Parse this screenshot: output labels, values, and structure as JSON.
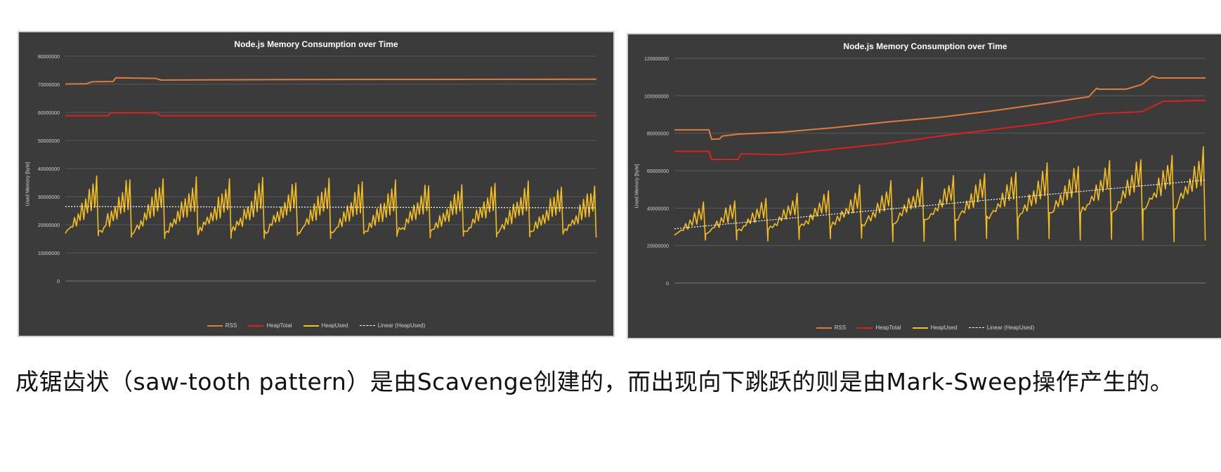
{
  "chart_data": [
    {
      "type": "line",
      "title": "Node.js Memory Consumption over Time",
      "ylabel": "Used Memory [byte]",
      "xlabel": "",
      "ylim": [
        0,
        80000000
      ],
      "yticks": [
        "80000000",
        "70000000",
        "60000000",
        "50000000",
        "40000000",
        "30000000",
        "20000000",
        "10000000",
        "0"
      ],
      "grid": true,
      "legend": "bottom",
      "series": [
        {
          "name": "RSS",
          "color": "#e07b39",
          "points": [
            [
              0,
              70100000
            ],
            [
              0.04,
              70200000
            ],
            [
              0.05,
              70900000
            ],
            [
              0.09,
              71000000
            ],
            [
              0.095,
              72300000
            ],
            [
              0.17,
              72100000
            ],
            [
              0.18,
              71500000
            ],
            [
              0.45,
              71700000
            ],
            [
              1.0,
              71800000
            ]
          ]
        },
        {
          "name": "HeapTotal",
          "color": "#e01f1f",
          "points": [
            [
              0,
              58800000
            ],
            [
              0.08,
              58800000
            ],
            [
              0.085,
              59800000
            ],
            [
              0.17,
              59800000
            ],
            [
              0.18,
              58800000
            ],
            [
              1.0,
              58800000
            ]
          ]
        },
        {
          "name": "HeapUsed",
          "color": "#f5be1f",
          "pattern": "sawtooth",
          "cycles": 16,
          "teeth_per_cycle": 9,
          "low_start": 18000000,
          "low_end": 18000000,
          "peak_start": 37000000,
          "peak_end": 34000000,
          "drop_floor": 15000000
        },
        {
          "name": "Linear (HeapUsed)",
          "color": "#ffffff",
          "dashed": true,
          "points": [
            [
              0,
              26500000
            ],
            [
              1.0,
              26000000
            ]
          ]
        }
      ]
    },
    {
      "type": "line",
      "title": "Node.js Memory Consumption over Time",
      "ylabel": "Used Memory [byte]",
      "xlabel": "",
      "ylim": [
        0,
        120000000
      ],
      "yticks": [
        "120000000",
        "100000000",
        "80000000",
        "60000000",
        "40000000",
        "20000000",
        "0"
      ],
      "grid": true,
      "legend": "bottom",
      "series": [
        {
          "name": "RSS",
          "color": "#e07b39",
          "points": [
            [
              0,
              81800000
            ],
            [
              0.065,
              81800000
            ],
            [
              0.07,
              76800000
            ],
            [
              0.085,
              77000000
            ],
            [
              0.09,
              78500000
            ],
            [
              0.12,
              79500000
            ],
            [
              0.2,
              80500000
            ],
            [
              0.3,
              83000000
            ],
            [
              0.4,
              86000000
            ],
            [
              0.5,
              88500000
            ],
            [
              0.6,
              92000000
            ],
            [
              0.7,
              96000000
            ],
            [
              0.78,
              99500000
            ],
            [
              0.795,
              104000000
            ],
            [
              0.8,
              103500000
            ],
            [
              0.85,
              103500000
            ],
            [
              0.88,
              106000000
            ],
            [
              0.9,
              110500000
            ],
            [
              0.91,
              109500000
            ],
            [
              1.0,
              109500000
            ]
          ]
        },
        {
          "name": "HeapTotal",
          "color": "#e01f1f",
          "points": [
            [
              0,
              70300000
            ],
            [
              0.065,
              70300000
            ],
            [
              0.07,
              66000000
            ],
            [
              0.12,
              66000000
            ],
            [
              0.125,
              69000000
            ],
            [
              0.2,
              68500000
            ],
            [
              0.3,
              71500000
            ],
            [
              0.4,
              74500000
            ],
            [
              0.5,
              78500000
            ],
            [
              0.6,
              82000000
            ],
            [
              0.7,
              85500000
            ],
            [
              0.8,
              90500000
            ],
            [
              0.88,
              91500000
            ],
            [
              0.92,
              97000000
            ],
            [
              1.0,
              97500000
            ]
          ]
        },
        {
          "name": "HeapUsed",
          "color": "#f5be1f",
          "pattern": "sawtooth",
          "cycles": 17,
          "teeth_per_cycle": 7,
          "low_start": 26000000,
          "low_end": 42000000,
          "peak_start": 42000000,
          "peak_end": 72000000,
          "drop_floor": 22000000
        },
        {
          "name": "Linear (HeapUsed)",
          "color": "#ffffff",
          "dashed": true,
          "points": [
            [
              0,
              29000000
            ],
            [
              1.0,
              55000000
            ]
          ]
        }
      ]
    }
  ],
  "caption": "成锯齿状（saw-tooth pattern）是由Scavenge创建的，而出现向下跳跃的则是由Mark-Sweep操作产生的。"
}
